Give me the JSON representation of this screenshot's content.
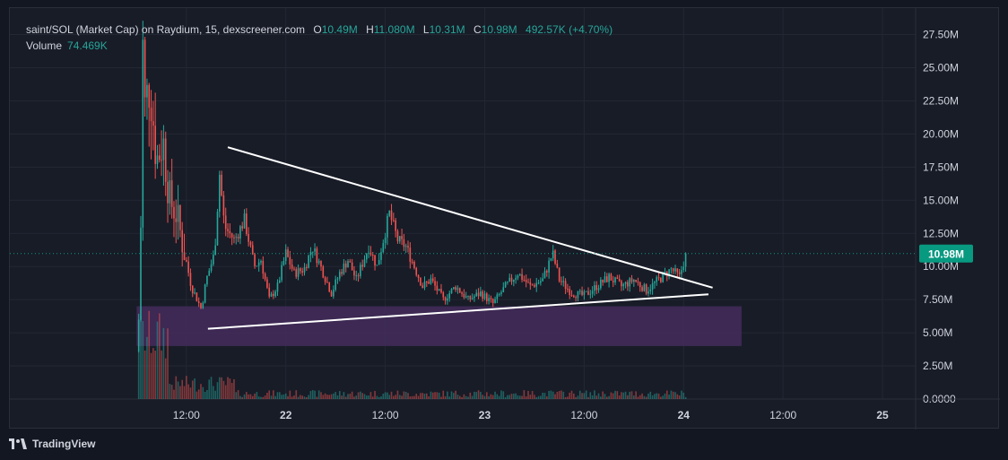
{
  "header": {
    "title": "saint/SOL (Market Cap) on Raydium, 15, dexscreener.com",
    "ohlc": [
      {
        "key": "O",
        "value": "10.49M"
      },
      {
        "key": "H",
        "value": "11.080M"
      },
      {
        "key": "L",
        "value": "10.31M"
      },
      {
        "key": "C",
        "value": "10.98M"
      }
    ],
    "change": "492.57K (+4.70%)",
    "volume_label": "Volume",
    "volume_value": "74.469K"
  },
  "price_label": "10.98M",
  "footer": {
    "brand": "TradingView"
  },
  "colors": {
    "background": "#131722",
    "panel": "#181c27",
    "grid": "#232733",
    "up": "#26a69a",
    "down": "#ef5350",
    "price_tag": "#089981",
    "zone": "#4a2d63",
    "trendline": "#ffffff",
    "text": "#d1d4dc"
  },
  "chart_data": {
    "type": "candlestick",
    "y_unit": "market cap (USD)",
    "yticks": [
      "27.50M",
      "25.00M",
      "22.50M",
      "20.00M",
      "17.50M",
      "15.00M",
      "12.50M",
      "10.00M",
      "7.50M",
      "5.00M",
      "2.50M",
      "0.0000"
    ],
    "yvalues": [
      27.5,
      25,
      22.5,
      20,
      17.5,
      15,
      12.5,
      10,
      7.5,
      5,
      2.5,
      0
    ],
    "ylim": [
      0,
      29.5
    ],
    "xticks": [
      "12:00",
      "22",
      "12:00",
      "23",
      "12:00",
      "24",
      "12:00",
      "25"
    ],
    "xtick_hours": [
      12,
      24,
      36,
      48,
      60,
      72,
      84,
      96
    ],
    "x_start_hours": -9.3,
    "x_end_hours": 100,
    "candle_interval_minutes": 15,
    "last_price": 10.98,
    "ohlc_anchor": [
      {
        "t": 6.25,
        "p": 6.0
      },
      {
        "t": 6.45,
        "p": 9.5
      },
      {
        "t": 6.7,
        "p": 27.5
      },
      {
        "t": 7.0,
        "p": 22.0
      },
      {
        "t": 7.6,
        "p": 24.0
      },
      {
        "t": 8.4,
        "p": 18.0
      },
      {
        "t": 9.2,
        "p": 19.5
      },
      {
        "t": 10.0,
        "p": 15.0
      },
      {
        "t": 10.8,
        "p": 14.0
      },
      {
        "t": 11.6,
        "p": 11.5
      },
      {
        "t": 12.6,
        "p": 8.5
      },
      {
        "t": 13.8,
        "p": 6.8
      },
      {
        "t": 14.4,
        "p": 9.0
      },
      {
        "t": 15.4,
        "p": 11.0
      },
      {
        "t": 16.0,
        "p": 17.0
      },
      {
        "t": 16.6,
        "p": 13.0
      },
      {
        "t": 17.8,
        "p": 12.0
      },
      {
        "t": 19.0,
        "p": 13.5
      },
      {
        "t": 20.2,
        "p": 10.0
      },
      {
        "t": 21.0,
        "p": 10.5
      },
      {
        "t": 22.0,
        "p": 7.5
      },
      {
        "t": 23.0,
        "p": 8.5
      },
      {
        "t": 24.0,
        "p": 11.0
      },
      {
        "t": 25.0,
        "p": 9.5
      },
      {
        "t": 26.2,
        "p": 9.8
      },
      {
        "t": 27.2,
        "p": 11.5
      },
      {
        "t": 28.2,
        "p": 10.0
      },
      {
        "t": 29.5,
        "p": 8.0
      },
      {
        "t": 30.5,
        "p": 9.5
      },
      {
        "t": 31.5,
        "p": 10.5
      },
      {
        "t": 32.5,
        "p": 9.0
      },
      {
        "t": 34.0,
        "p": 11.5
      },
      {
        "t": 35.0,
        "p": 10.0
      },
      {
        "t": 36.5,
        "p": 14.0
      },
      {
        "t": 37.5,
        "p": 12.0
      },
      {
        "t": 38.5,
        "p": 11.5
      },
      {
        "t": 39.5,
        "p": 10.0
      },
      {
        "t": 40.5,
        "p": 8.5
      },
      {
        "t": 41.5,
        "p": 9.0
      },
      {
        "t": 43.0,
        "p": 7.5
      },
      {
        "t": 44.5,
        "p": 8.5
      },
      {
        "t": 46.0,
        "p": 7.5
      },
      {
        "t": 47.5,
        "p": 8.0
      },
      {
        "t": 49.0,
        "p": 7.2
      },
      {
        "t": 50.5,
        "p": 8.5
      },
      {
        "t": 52.0,
        "p": 9.5
      },
      {
        "t": 53.5,
        "p": 8.5
      },
      {
        "t": 55.0,
        "p": 9.0
      },
      {
        "t": 56.2,
        "p": 11.0
      },
      {
        "t": 57.0,
        "p": 9.0
      },
      {
        "t": 58.5,
        "p": 8.0
      },
      {
        "t": 60.0,
        "p": 7.8
      },
      {
        "t": 61.5,
        "p": 8.5
      },
      {
        "t": 63.0,
        "p": 9.2
      },
      {
        "t": 64.5,
        "p": 8.5
      },
      {
        "t": 66.0,
        "p": 9.0
      },
      {
        "t": 67.5,
        "p": 8.2
      },
      {
        "t": 69.0,
        "p": 9.0
      },
      {
        "t": 70.5,
        "p": 9.8
      },
      {
        "t": 71.5,
        "p": 9.2
      },
      {
        "t": 72.3,
        "p": 11.0
      }
    ],
    "trendlines": [
      {
        "name": "upper-resistance",
        "from": {
          "t": 17.0,
          "p": 19.0
        },
        "to": {
          "t": 75.5,
          "p": 8.4
        }
      },
      {
        "name": "lower-support",
        "from": {
          "t": 14.6,
          "p": 5.3
        },
        "to": {
          "t": 75.0,
          "p": 7.9
        }
      }
    ],
    "zone": {
      "t_start": 6.0,
      "t_end": 79.0,
      "p_low": 4.0,
      "p_high": 7.0
    }
  }
}
